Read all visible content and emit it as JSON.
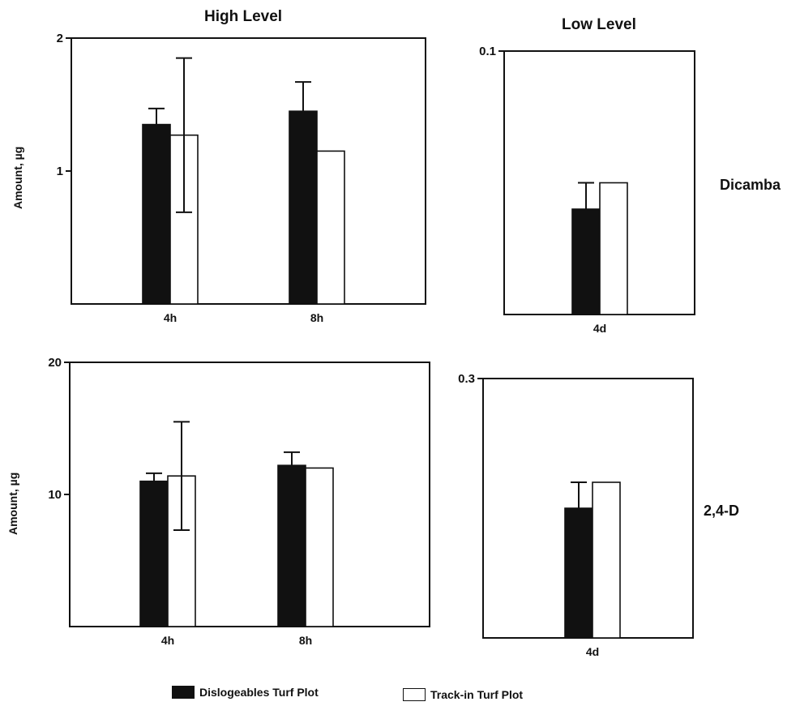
{
  "headers": {
    "high": "High Level",
    "low": "Low Level"
  },
  "rows": {
    "top": "Dicamba",
    "bottom": "2,4-D"
  },
  "ylabel": "Amount, µg",
  "legend": {
    "dislodgeable": "Dislogeables Turf Plot",
    "trackin": "Track-in Turf Plot"
  },
  "colors": {
    "dislodgeable": "#111111",
    "trackin": "#ffffff",
    "axis": "#111111"
  },
  "chart_data": [
    {
      "type": "bar",
      "panel": "dicamba-high",
      "categories": [
        "4h",
        "8h"
      ],
      "series": [
        {
          "name": "Dislogeables Turf Plot",
          "values": [
            1.35,
            1.45
          ],
          "errors": [
            0.12,
            0.22
          ]
        },
        {
          "name": "Track-in Turf Plot",
          "values": [
            1.27,
            1.15
          ],
          "errors": [
            0.58,
            null
          ]
        }
      ],
      "ylim": [
        0,
        2
      ],
      "yticks": [
        1,
        2
      ],
      "ylabel": "Amount, µg"
    },
    {
      "type": "bar",
      "panel": "dicamba-low",
      "categories": [
        "4d"
      ],
      "series": [
        {
          "name": "Dislogeables Turf Plot",
          "values": [
            0.04
          ],
          "errors": [
            0.01
          ]
        },
        {
          "name": "Track-in Turf Plot",
          "values": [
            0.05
          ],
          "errors": [
            null
          ]
        }
      ],
      "ylim": [
        0,
        0.1
      ],
      "yticks": [
        0.1
      ]
    },
    {
      "type": "bar",
      "panel": "24d-high",
      "categories": [
        "4h",
        "8h"
      ],
      "series": [
        {
          "name": "Dislogeables Turf Plot",
          "values": [
            11.0,
            12.2
          ],
          "errors": [
            0.6,
            1.0
          ]
        },
        {
          "name": "Track-in Turf Plot",
          "values": [
            11.4,
            12.0
          ],
          "errors": [
            4.1,
            null
          ]
        }
      ],
      "ylim": [
        0,
        20
      ],
      "yticks": [
        10,
        20
      ],
      "ylabel": "Amount, µg"
    },
    {
      "type": "bar",
      "panel": "24d-low",
      "categories": [
        "4d"
      ],
      "series": [
        {
          "name": "Dislogeables Turf Plot",
          "values": [
            0.15
          ],
          "errors": [
            0.03
          ]
        },
        {
          "name": "Track-in Turf Plot",
          "values": [
            0.18
          ],
          "errors": [
            null
          ]
        }
      ],
      "ylim": [
        0,
        0.3
      ],
      "yticks": [
        0.3
      ]
    }
  ]
}
